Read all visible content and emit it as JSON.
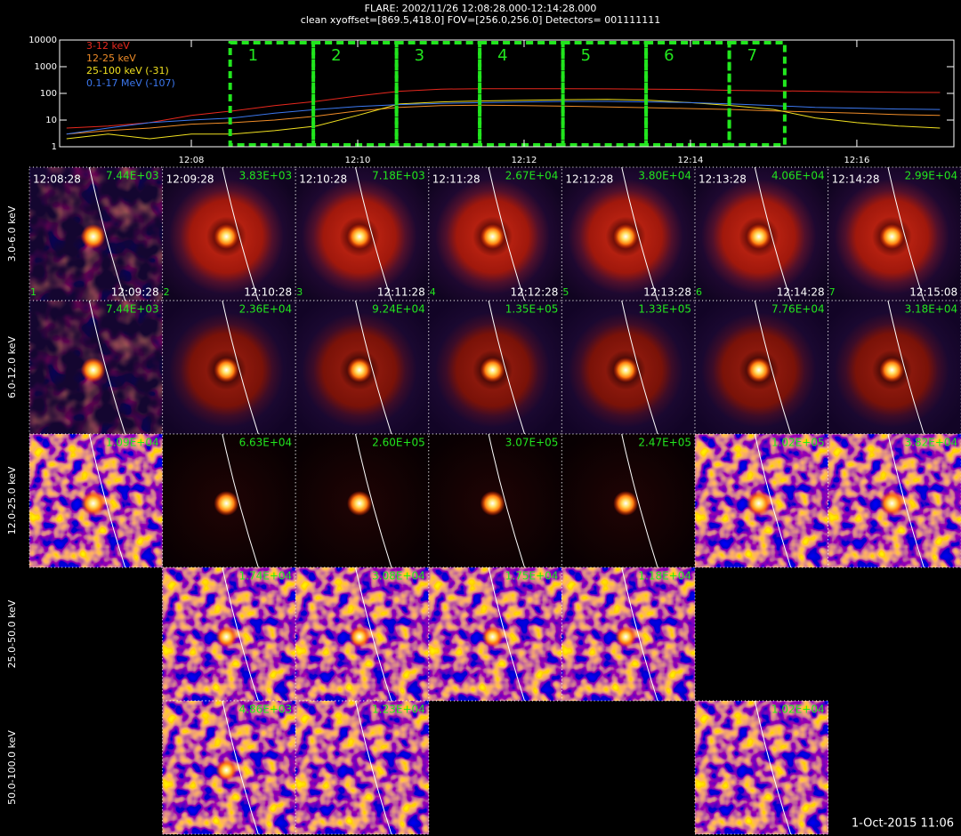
{
  "header": {
    "title": "FLARE: 2002/11/26 12:08:28.000-12:14:28.000",
    "subtitle": "clean    xyoffset=[869.5,418.0]    FOV=[256.0,256.0]    Detectors= 001111111"
  },
  "chart_data": {
    "type": "line",
    "log_scale": true,
    "legend": "upper-left",
    "x": [
      "12:06:30",
      "12:07:00",
      "12:07:30",
      "12:08:00",
      "12:08:30",
      "12:09:00",
      "12:09:30",
      "12:10:00",
      "12:10:30",
      "12:11:00",
      "12:11:30",
      "12:12:00",
      "12:12:30",
      "12:13:00",
      "12:13:30",
      "12:14:00",
      "12:14:30",
      "12:15:00",
      "12:15:30",
      "12:16:00",
      "12:16:30",
      "12:17:00"
    ],
    "xlim": [
      "12:06:25",
      "12:17:10"
    ],
    "xticks": [
      "12:08",
      "12:10",
      "12:12",
      "12:14",
      "12:16"
    ],
    "ylim": [
      1,
      10000
    ],
    "yticks": [
      1,
      10,
      100,
      1000,
      10000
    ],
    "series": [
      {
        "name": "3-12 keV",
        "color": "#e8281e",
        "values": [
          5,
          6,
          8,
          15,
          22,
          35,
          50,
          80,
          120,
          145,
          150,
          150,
          150,
          148,
          145,
          140,
          130,
          125,
          120,
          115,
          110,
          108
        ]
      },
      {
        "name": "12-25 keV",
        "color": "#f08c28",
        "values": [
          3,
          4,
          5,
          7,
          8,
          10,
          14,
          22,
          30,
          35,
          36,
          35,
          33,
          31,
          29,
          27,
          25,
          22,
          20,
          18,
          16,
          15
        ]
      },
      {
        "name": "25-100 keV (-31)",
        "color": "#f0e020",
        "values": [
          2,
          3,
          2,
          3,
          3,
          4,
          6,
          15,
          40,
          48,
          52,
          55,
          58,
          60,
          55,
          45,
          35,
          25,
          12,
          8,
          6,
          5
        ]
      },
      {
        "name": "0.1-17 MeV (-107)",
        "color": "#3c78f0",
        "values": [
          3,
          5,
          8,
          10,
          12,
          18,
          25,
          32,
          38,
          42,
          45,
          48,
          50,
          50,
          48,
          45,
          40,
          35,
          30,
          28,
          26,
          25
        ]
      }
    ],
    "intervals": [
      {
        "label": "1",
        "start": "12:08:28",
        "end": "12:09:28"
      },
      {
        "label": "2",
        "start": "12:09:28",
        "end": "12:10:28"
      },
      {
        "label": "3",
        "start": "12:10:28",
        "end": "12:11:28"
      },
      {
        "label": "4",
        "start": "12:11:28",
        "end": "12:12:28"
      },
      {
        "label": "5",
        "start": "12:12:28",
        "end": "12:13:28"
      },
      {
        "label": "6",
        "start": "12:13:28",
        "end": "12:14:28"
      },
      {
        "label": "7",
        "start": "12:14:28",
        "end": "12:15:08"
      }
    ],
    "interval_color": "#22e61e"
  },
  "image_grid": {
    "rows": [
      {
        "label": "3.0-6.0 keV",
        "panels": [
          {
            "peak": "7.44E+03",
            "start": "12:08:28",
            "end": "12:09:28",
            "index": "1"
          },
          {
            "peak": "3.83E+03",
            "start": "12:09:28",
            "end": "12:10:28",
            "index": "2"
          },
          {
            "peak": "7.18E+03",
            "start": "12:10:28",
            "end": "12:11:28",
            "index": "3"
          },
          {
            "peak": "2.67E+04",
            "start": "12:11:28",
            "end": "12:12:28",
            "index": "4"
          },
          {
            "peak": "3.80E+04",
            "start": "12:12:28",
            "end": "12:13:28",
            "index": "5"
          },
          {
            "peak": "4.06E+04",
            "start": "12:13:28",
            "end": "12:14:28",
            "index": "6"
          },
          {
            "peak": "2.99E+04",
            "start": "12:14:28",
            "end": "12:15:08",
            "index": "7"
          }
        ]
      },
      {
        "label": "6.0-12.0 keV",
        "panels": [
          {
            "peak": "7.44E+03"
          },
          {
            "peak": "2.36E+04"
          },
          {
            "peak": "9.24E+04"
          },
          {
            "peak": "1.35E+05"
          },
          {
            "peak": "1.33E+05"
          },
          {
            "peak": "7.76E+04"
          },
          {
            "peak": "3.18E+04"
          }
        ]
      },
      {
        "label": "12.0-25.0 keV",
        "panels": [
          {
            "peak": "1.09E+04"
          },
          {
            "peak": "6.63E+04"
          },
          {
            "peak": "2.60E+05"
          },
          {
            "peak": "3.07E+05"
          },
          {
            "peak": "2.47E+05"
          },
          {
            "peak": "1.02E+05"
          },
          {
            "peak": "3.82E+04"
          }
        ]
      },
      {
        "label": "25.0-50.0 keV",
        "panels": [
          null,
          {
            "peak": "1.74E+04"
          },
          {
            "peak": "3.08E+04"
          },
          {
            "peak": "1.75E+04"
          },
          {
            "peak": "1.18E+04"
          },
          null,
          null
        ]
      },
      {
        "label": "50.0-100.0 keV",
        "panels": [
          null,
          {
            "peak": "4.86E+03"
          },
          {
            "peak": "1.23E+04"
          },
          null,
          null,
          {
            "peak": "1.02E+04"
          },
          null
        ]
      }
    ]
  },
  "footer": {
    "text": "1-Oct-2015 11:06"
  }
}
